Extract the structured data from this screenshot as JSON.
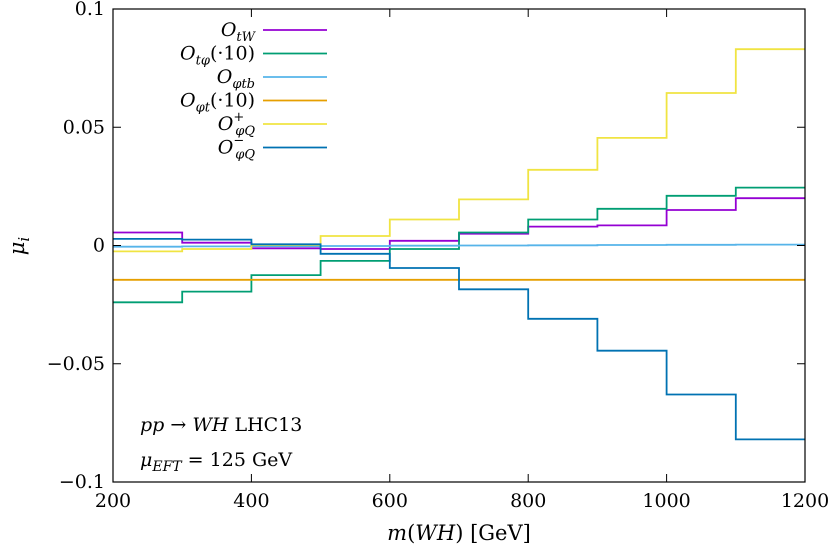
{
  "chart_data": {
    "type": "line",
    "step": true,
    "xlabel": "m(WH) [GeV]",
    "ylabel": "μ_i",
    "xlim": [
      200,
      1200
    ],
    "ylim": [
      -0.1,
      0.1
    ],
    "xticks": [
      200,
      400,
      600,
      800,
      1000,
      1200
    ],
    "xtick_labels": [
      "200",
      "400",
      "600",
      "800",
      "1000",
      "1200"
    ],
    "yticks": [
      -0.1,
      -0.05,
      0,
      0.05,
      0.1
    ],
    "ytick_labels": [
      "−0.1",
      "−0.05",
      "0",
      "0.05",
      "0.1"
    ],
    "grid": false,
    "legend_position": "top-left",
    "bin_edges": [
      200,
      300,
      400,
      500,
      600,
      700,
      800,
      900,
      1000,
      1100,
      1200
    ],
    "series": [
      {
        "name": "O_tW",
        "label_main": "O",
        "label_sub": "tW",
        "label_extra": "",
        "color": "#9400d3",
        "values": [
          0.0055,
          0.0012,
          -0.0012,
          -0.0015,
          0.002,
          0.005,
          0.008,
          0.0085,
          0.015,
          0.02
        ]
      },
      {
        "name": "O_tφ(·10)",
        "label_main": "O",
        "label_sub": "tφ",
        "label_extra": "(·10)",
        "color": "#009e73",
        "values": [
          -0.024,
          -0.0195,
          -0.0125,
          -0.0065,
          -0.0015,
          0.0055,
          0.011,
          0.0155,
          0.021,
          0.0245
        ]
      },
      {
        "name": "O_φtb",
        "label_main": "O",
        "label_sub": "φtb",
        "label_extra": "",
        "color": "#56b4e9",
        "values": [
          -0.0005,
          -0.0004,
          -0.0003,
          -0.0002,
          -0.0001,
          0.0,
          0.0001,
          0.0002,
          0.0003,
          0.0004
        ]
      },
      {
        "name": "O_φt(·10)",
        "label_main": "O",
        "label_sub": "φt",
        "label_extra": "(·10)",
        "color": "#e69f00",
        "values": [
          -0.0145,
          -0.0145,
          -0.0145,
          -0.0145,
          -0.0145,
          -0.0145,
          -0.0145,
          -0.0145,
          -0.0145,
          -0.0145
        ]
      },
      {
        "name": "O_φQ^+",
        "label_main": "O",
        "label_sub": "φQ",
        "label_sup": "+",
        "label_extra": "",
        "color": "#f0e442",
        "values": [
          -0.0025,
          -0.0015,
          0.0002,
          0.004,
          0.011,
          0.0195,
          0.032,
          0.0455,
          0.0645,
          0.083
        ]
      },
      {
        "name": "O_φQ^−",
        "label_main": "O",
        "label_sub": "φQ",
        "label_sup": "−",
        "label_extra": "",
        "color": "#0072b2",
        "values": [
          0.0028,
          0.0025,
          0.0005,
          -0.0035,
          -0.0095,
          -0.0185,
          -0.031,
          -0.0445,
          -0.063,
          -0.082
        ]
      }
    ],
    "annotations": [
      {
        "id": "process",
        "text": "pp → WH LHC13"
      },
      {
        "id": "scale",
        "text": "μ_EFT = 125 GeV"
      }
    ]
  }
}
